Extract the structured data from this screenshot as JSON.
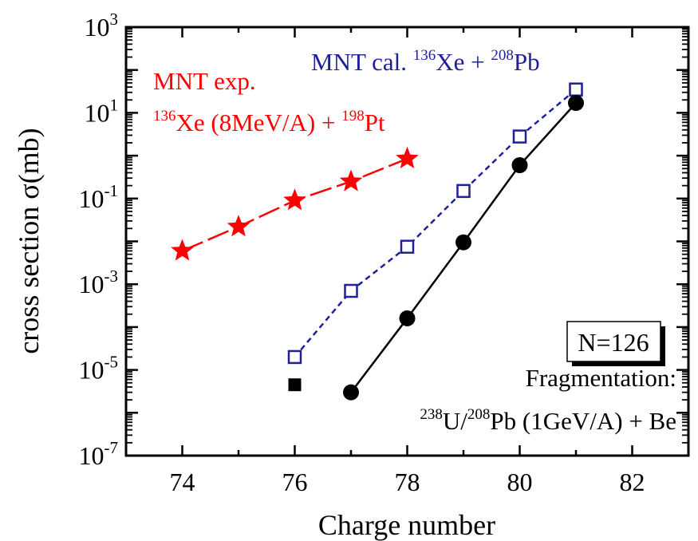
{
  "chart_data": {
    "type": "scatter",
    "xlabel": "Charge number",
    "ylabel": "cross section σ(mb)",
    "x_ticks": [
      "74",
      "76",
      "78",
      "80",
      "82"
    ],
    "xlim": [
      73,
      83
    ],
    "y_scale": "log",
    "ylim": [
      1e-07,
      1000
    ],
    "y_ticks": [
      {
        "base": "10",
        "exp": "3"
      },
      {
        "base": "10",
        "exp": "1"
      },
      {
        "base": "10",
        "exp": "-1"
      },
      {
        "base": "10",
        "exp": "-3"
      },
      {
        "base": "10",
        "exp": "-5"
      },
      {
        "base": "10",
        "exp": "-7"
      }
    ],
    "series": [
      {
        "name": "MNT exp. 136Xe (8MeV/A) + 198Pt",
        "color": "#ff0000",
        "marker": "star",
        "line": "long-dash",
        "x": [
          74,
          75,
          76,
          77,
          78
        ],
        "y": [
          0.006,
          0.022,
          0.09,
          0.25,
          0.85
        ]
      },
      {
        "name": "MNT cal. 136Xe + 208Pb",
        "color": "#1f1f9c",
        "marker": "open-square",
        "line": "short-dash",
        "x": [
          76,
          77,
          78,
          79,
          80,
          81
        ],
        "y": [
          2e-05,
          0.0007,
          0.0075,
          0.15,
          2.8,
          35
        ]
      },
      {
        "name": "Fragmentation: 238U/208Pb (1GeV/A) + Be",
        "color": "#000000",
        "marker": "filled-circle",
        "line": "solid",
        "x": [
          77,
          78,
          79,
          80,
          81
        ],
        "y": [
          3e-06,
          0.00016,
          0.0095,
          0.6,
          17
        ]
      },
      {
        "name": "",
        "color": "#000000",
        "marker": "filled-square",
        "line": "none",
        "x": [
          76
        ],
        "y": [
          4.5e-06
        ]
      }
    ],
    "annotations": {
      "mnt_exp_line1": "MNT exp.",
      "mnt_exp_line2": {
        "sup1": "136",
        "t1": "Xe (8MeV/A) + ",
        "sup2": "198",
        "t2": "Pt"
      },
      "mnt_cal": {
        "t0": "MNT cal. ",
        "sup1": "136",
        "t1": "Xe + ",
        "sup2": "208",
        "t2": "Pb"
      },
      "n_box": "N=126",
      "frag_line1": "Fragmentation:",
      "frag_line2": {
        "sup1": "238",
        "t1": "U/",
        "sup2": "208",
        "t2": "Pb (1GeV/A) + Be"
      }
    },
    "grid": false
  }
}
